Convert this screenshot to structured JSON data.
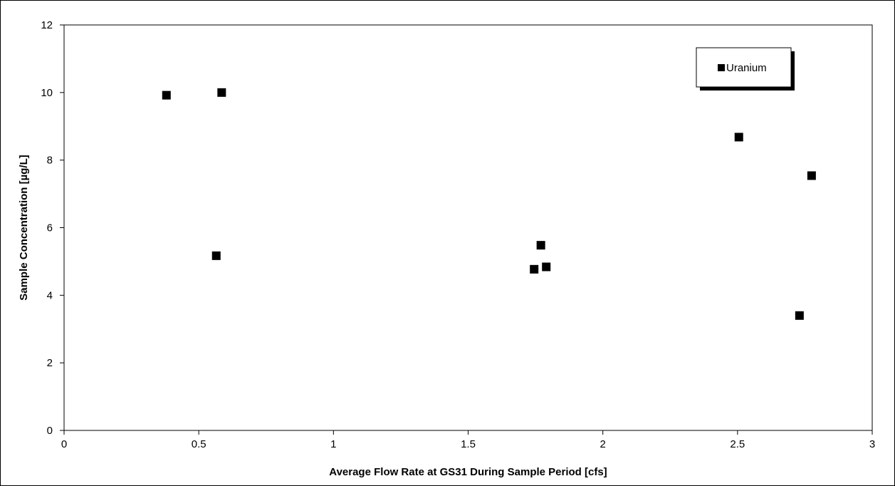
{
  "chart_data": {
    "type": "scatter",
    "title": "",
    "xlabel": "Average Flow Rate at GS31 During Sample Period [cfs]",
    "ylabel": "Sample Concentration [µg/L]",
    "xlim": [
      0,
      3
    ],
    "ylim": [
      0,
      12
    ],
    "x_ticks": [
      0,
      0.5,
      1,
      1.5,
      2,
      2.5,
      3
    ],
    "x_tick_labels": [
      "0",
      "0.5",
      "1",
      "1.5",
      "2",
      "2.5",
      "3"
    ],
    "y_ticks": [
      0,
      2,
      4,
      6,
      8,
      10,
      12
    ],
    "y_tick_labels": [
      "0",
      "2",
      "4",
      "6",
      "8",
      "10",
      "12"
    ],
    "grid": false,
    "legend_position": "top-right",
    "series": [
      {
        "name": "Uranium",
        "marker": "square",
        "color": "#000000",
        "points": [
          {
            "x": 0.38,
            "y": 9.92
          },
          {
            "x": 0.585,
            "y": 10.0
          },
          {
            "x": 0.565,
            "y": 5.17
          },
          {
            "x": 1.745,
            "y": 4.77
          },
          {
            "x": 1.77,
            "y": 5.48
          },
          {
            "x": 1.79,
            "y": 4.84
          },
          {
            "x": 2.505,
            "y": 8.68
          },
          {
            "x": 2.775,
            "y": 7.54
          },
          {
            "x": 2.73,
            "y": 3.4
          }
        ]
      }
    ]
  }
}
